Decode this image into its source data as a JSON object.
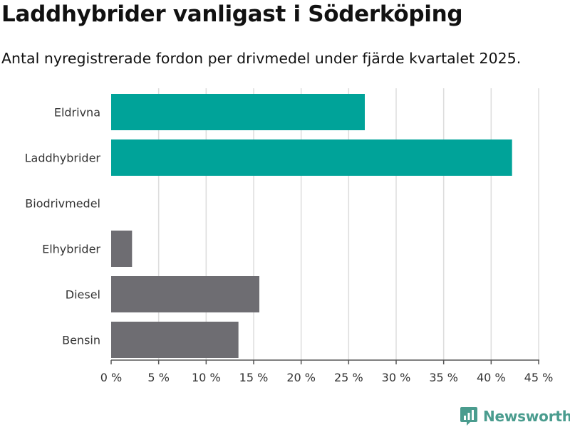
{
  "chart_data": {
    "type": "bar",
    "orientation": "horizontal",
    "title": "Laddhybrider vanligast i Söderköping",
    "subtitle": "Antal nyregistrerade fordon per drivmedel under fjärde kvartalet 2025.",
    "categories": [
      "Eldrivna",
      "Laddhybrider",
      "Biodrivmedel",
      "Elhybrider",
      "Diesel",
      "Bensin"
    ],
    "values": [
      26.7,
      42.2,
      0,
      2.2,
      15.6,
      13.4
    ],
    "bar_colors": [
      "#00a399",
      "#00a399",
      "#6e6d72",
      "#6e6d72",
      "#6e6d72",
      "#6e6d72"
    ],
    "xlim": [
      0,
      45
    ],
    "x_ticks": [
      0,
      5,
      10,
      15,
      20,
      25,
      30,
      35,
      40,
      45
    ],
    "x_tick_labels": [
      "0 %",
      "5 %",
      "10 %",
      "15 %",
      "20 %",
      "25 %",
      "30 %",
      "35 %",
      "40 %",
      "45 %"
    ],
    "xlabel": "",
    "ylabel": "",
    "grid": true,
    "grid_color": "#dddddd",
    "axis_color": "#555555"
  },
  "brand": {
    "name": "Newsworthy",
    "icon": "newsworthy-logo-icon",
    "color": "#4a9c8e"
  }
}
